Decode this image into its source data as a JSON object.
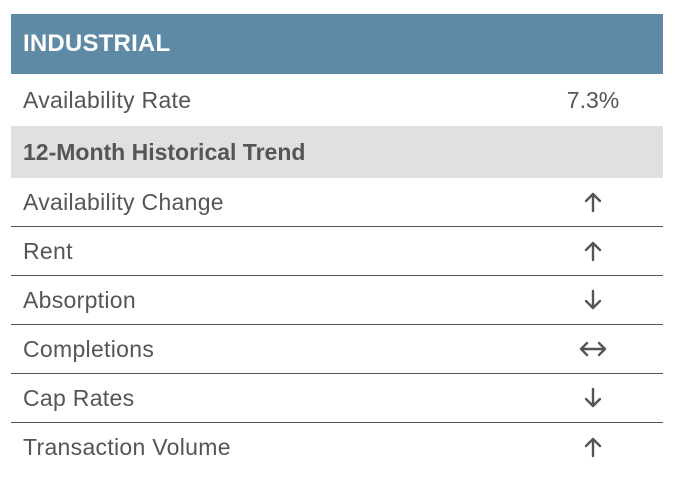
{
  "header": {
    "title": "INDUSTRIAL"
  },
  "availability": {
    "label": "Availability Rate",
    "value": "7.3%"
  },
  "section": {
    "title": "12-Month Historical Trend"
  },
  "trends": [
    {
      "label": "Availability Change",
      "direction": "up",
      "icon": "arrow-up-icon"
    },
    {
      "label": "Rent",
      "direction": "up",
      "icon": "arrow-up-icon"
    },
    {
      "label": "Absorption",
      "direction": "down",
      "icon": "arrow-down-icon"
    },
    {
      "label": "Completions",
      "direction": "flat",
      "icon": "arrow-left-right-icon"
    },
    {
      "label": "Cap Rates",
      "direction": "down",
      "icon": "arrow-down-icon"
    },
    {
      "label": "Transaction Volume",
      "direction": "up",
      "icon": "arrow-up-icon"
    }
  ],
  "colors": {
    "header_bg": "#5f8aa6",
    "section_bg": "#e0e0e0",
    "text": "#555555"
  }
}
